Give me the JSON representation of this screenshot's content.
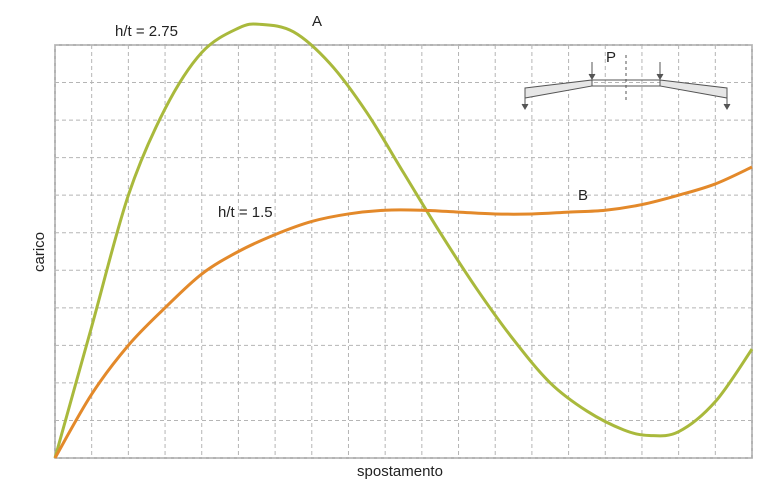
{
  "chart_data": {
    "type": "line",
    "x_label": "spostamento",
    "y_label": "carico",
    "xlim": [
      0,
      19
    ],
    "ylim": [
      0,
      11
    ],
    "xticks": [
      0,
      1,
      2,
      3,
      4,
      5,
      6,
      7,
      8,
      9,
      10,
      11,
      12,
      13,
      14,
      15,
      16,
      17,
      18,
      19
    ],
    "yticks": [
      0,
      1,
      2,
      3,
      4,
      5,
      6,
      7,
      8,
      9,
      10,
      11
    ],
    "grid": true,
    "series": [
      {
        "name": "h/t = 2.75",
        "label": "A",
        "color": "#a9b93c",
        "x": [
          0,
          1,
          2,
          3,
          4,
          5,
          5.6,
          6.5,
          7.5,
          8.5,
          9.5,
          10.5,
          11.5,
          12.5,
          13.5,
          14.5,
          15.5,
          16.2,
          17,
          18,
          19
        ],
        "values": [
          0,
          3.5,
          7.0,
          9.3,
          10.8,
          11.45,
          11.55,
          11.35,
          10.5,
          9.2,
          7.6,
          6.0,
          4.5,
          3.15,
          2.0,
          1.25,
          0.75,
          0.6,
          0.7,
          1.5,
          2.9
        ]
      },
      {
        "name": "h/t = 1.5",
        "label": "B",
        "color": "#e3892a",
        "x": [
          0,
          1,
          2,
          3,
          4,
          5,
          6,
          7,
          8,
          9,
          10,
          11,
          12,
          13,
          14,
          15,
          16,
          17,
          18,
          19
        ],
        "values": [
          0,
          1.7,
          3.0,
          4.0,
          4.9,
          5.5,
          5.95,
          6.3,
          6.5,
          6.6,
          6.6,
          6.55,
          6.5,
          6.5,
          6.55,
          6.6,
          6.75,
          7.0,
          7.3,
          7.75
        ]
      }
    ],
    "annotations": [
      {
        "text": "P"
      }
    ]
  }
}
